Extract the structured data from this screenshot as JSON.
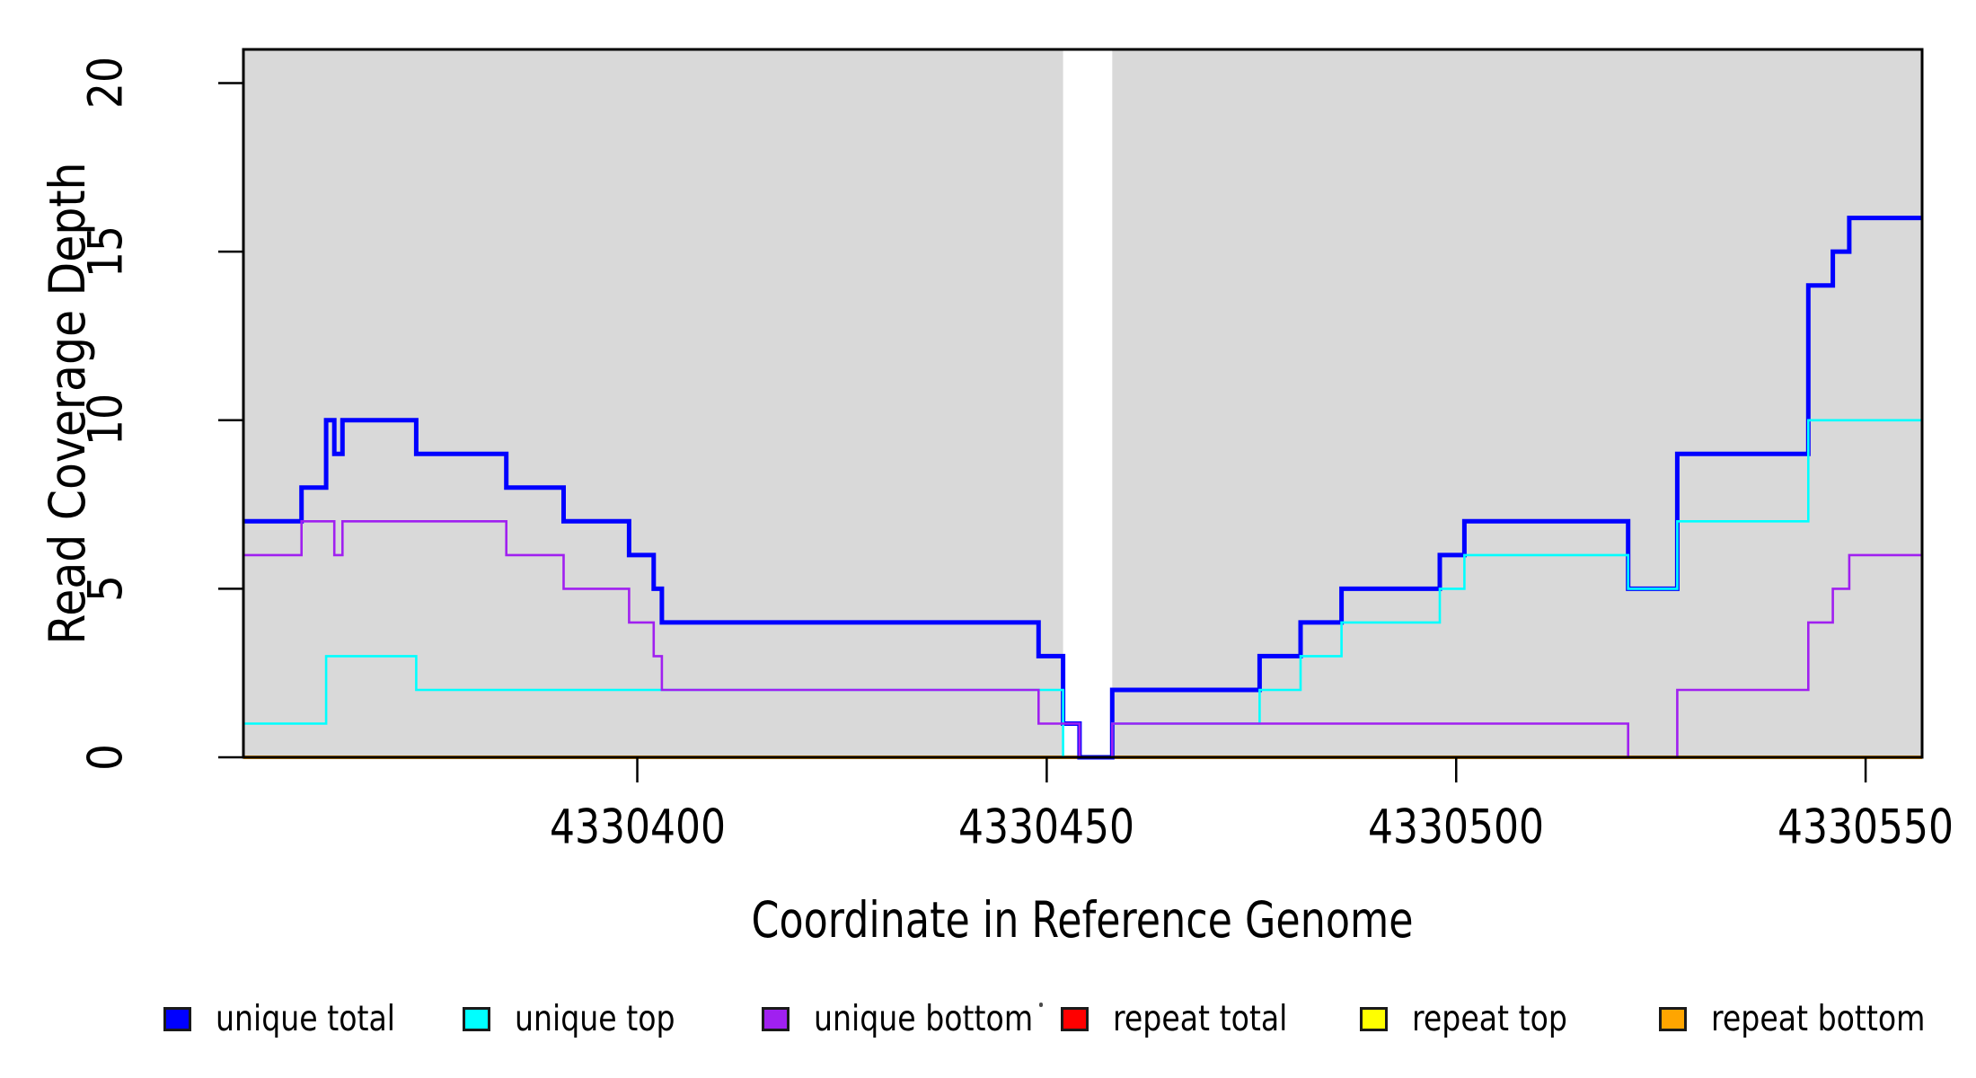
{
  "figure": {
    "background": "#FFFFFF",
    "border_color": "#000000"
  },
  "chart_data": {
    "type": "line",
    "step": "after",
    "title": "",
    "xlabel": "Coordinate in Reference Genome",
    "ylabel": "Read Coverage Depth",
    "xlim": [
      4330351.9,
      4330556.9
    ],
    "ylim": [
      0,
      21
    ],
    "xticks": [
      "4330400",
      "4330450",
      "4330500",
      "4330550"
    ],
    "xtick_values": [
      4330400,
      4330450,
      4330500,
      4330550
    ],
    "yticks": [
      "0",
      "5",
      "10",
      "15",
      "20"
    ],
    "ytick_values": [
      0,
      5,
      10,
      15,
      20
    ],
    "grid": false,
    "plot_background": "#D9D9D9",
    "gap_region": {
      "from": 4330452,
      "to": 4330458,
      "color": "#FFFFFF"
    },
    "series": [
      {
        "name": "repeat total",
        "color": "#FF0000",
        "width": 3,
        "points": [
          [
            4330351.9,
            0
          ]
        ]
      },
      {
        "name": "repeat top",
        "color": "#FFFF00",
        "width": 3,
        "points": [
          [
            4330351.9,
            0
          ]
        ]
      },
      {
        "name": "repeat bottom",
        "color": "#FFA500",
        "width": 4,
        "points": [
          [
            4330351.9,
            0
          ]
        ]
      },
      {
        "name": "unique total",
        "color": "#0000FF",
        "width": 5,
        "points": [
          [
            4330351.9,
            7
          ],
          [
            4330359,
            8
          ],
          [
            4330362,
            10
          ],
          [
            4330363,
            9
          ],
          [
            4330364,
            10
          ],
          [
            4330373,
            9
          ],
          [
            4330384,
            8
          ],
          [
            4330391,
            7
          ],
          [
            4330399,
            6
          ],
          [
            4330402,
            5
          ],
          [
            4330403,
            4
          ],
          [
            4330449,
            3
          ],
          [
            4330452,
            1
          ],
          [
            4330454,
            0
          ],
          [
            4330458,
            2
          ],
          [
            4330476,
            3
          ],
          [
            4330481,
            4
          ],
          [
            4330486,
            5
          ],
          [
            4330498,
            6
          ],
          [
            4330501,
            7
          ],
          [
            4330521,
            5
          ],
          [
            4330527,
            9
          ],
          [
            4330543,
            14
          ],
          [
            4330546,
            15
          ],
          [
            4330548,
            16
          ]
        ]
      },
      {
        "name": "unique top",
        "color": "#00FFFF",
        "width": 2.6,
        "points": [
          [
            4330351.9,
            1
          ],
          [
            4330362,
            3
          ],
          [
            4330373,
            2
          ],
          [
            4330452,
            0
          ],
          [
            4330458,
            1
          ],
          [
            4330476,
            2
          ],
          [
            4330481,
            3
          ],
          [
            4330486,
            4
          ],
          [
            4330498,
            5
          ],
          [
            4330501,
            6
          ],
          [
            4330521,
            5
          ],
          [
            4330527,
            7
          ],
          [
            4330543,
            10
          ]
        ]
      },
      {
        "name": "unique bottom",
        "color": "#A020F0",
        "width": 2.6,
        "points": [
          [
            4330351.9,
            6
          ],
          [
            4330359,
            7
          ],
          [
            4330363,
            6
          ],
          [
            4330364,
            7
          ],
          [
            4330384,
            6
          ],
          [
            4330391,
            5
          ],
          [
            4330399,
            4
          ],
          [
            4330402,
            3
          ],
          [
            4330403,
            2
          ],
          [
            4330449,
            1
          ],
          [
            4330454,
            0
          ],
          [
            4330458,
            1
          ],
          [
            4330521,
            0
          ],
          [
            4330527,
            2
          ],
          [
            4330543,
            4
          ],
          [
            4330546,
            5
          ],
          [
            4330548,
            6
          ]
        ]
      }
    ],
    "legend": {
      "position": "bottom",
      "items": [
        {
          "label": "unique total",
          "color": "#0000FF"
        },
        {
          "label": "unique top",
          "color": "#00FFFF"
        },
        {
          "label": "unique bottom",
          "color": "#A020F0"
        },
        {
          "label": "repeat total",
          "color": "#FF0000"
        },
        {
          "label": "repeat top",
          "color": "#FFFF00"
        },
        {
          "label": "repeat bottom",
          "color": "#FFA500"
        }
      ]
    }
  }
}
